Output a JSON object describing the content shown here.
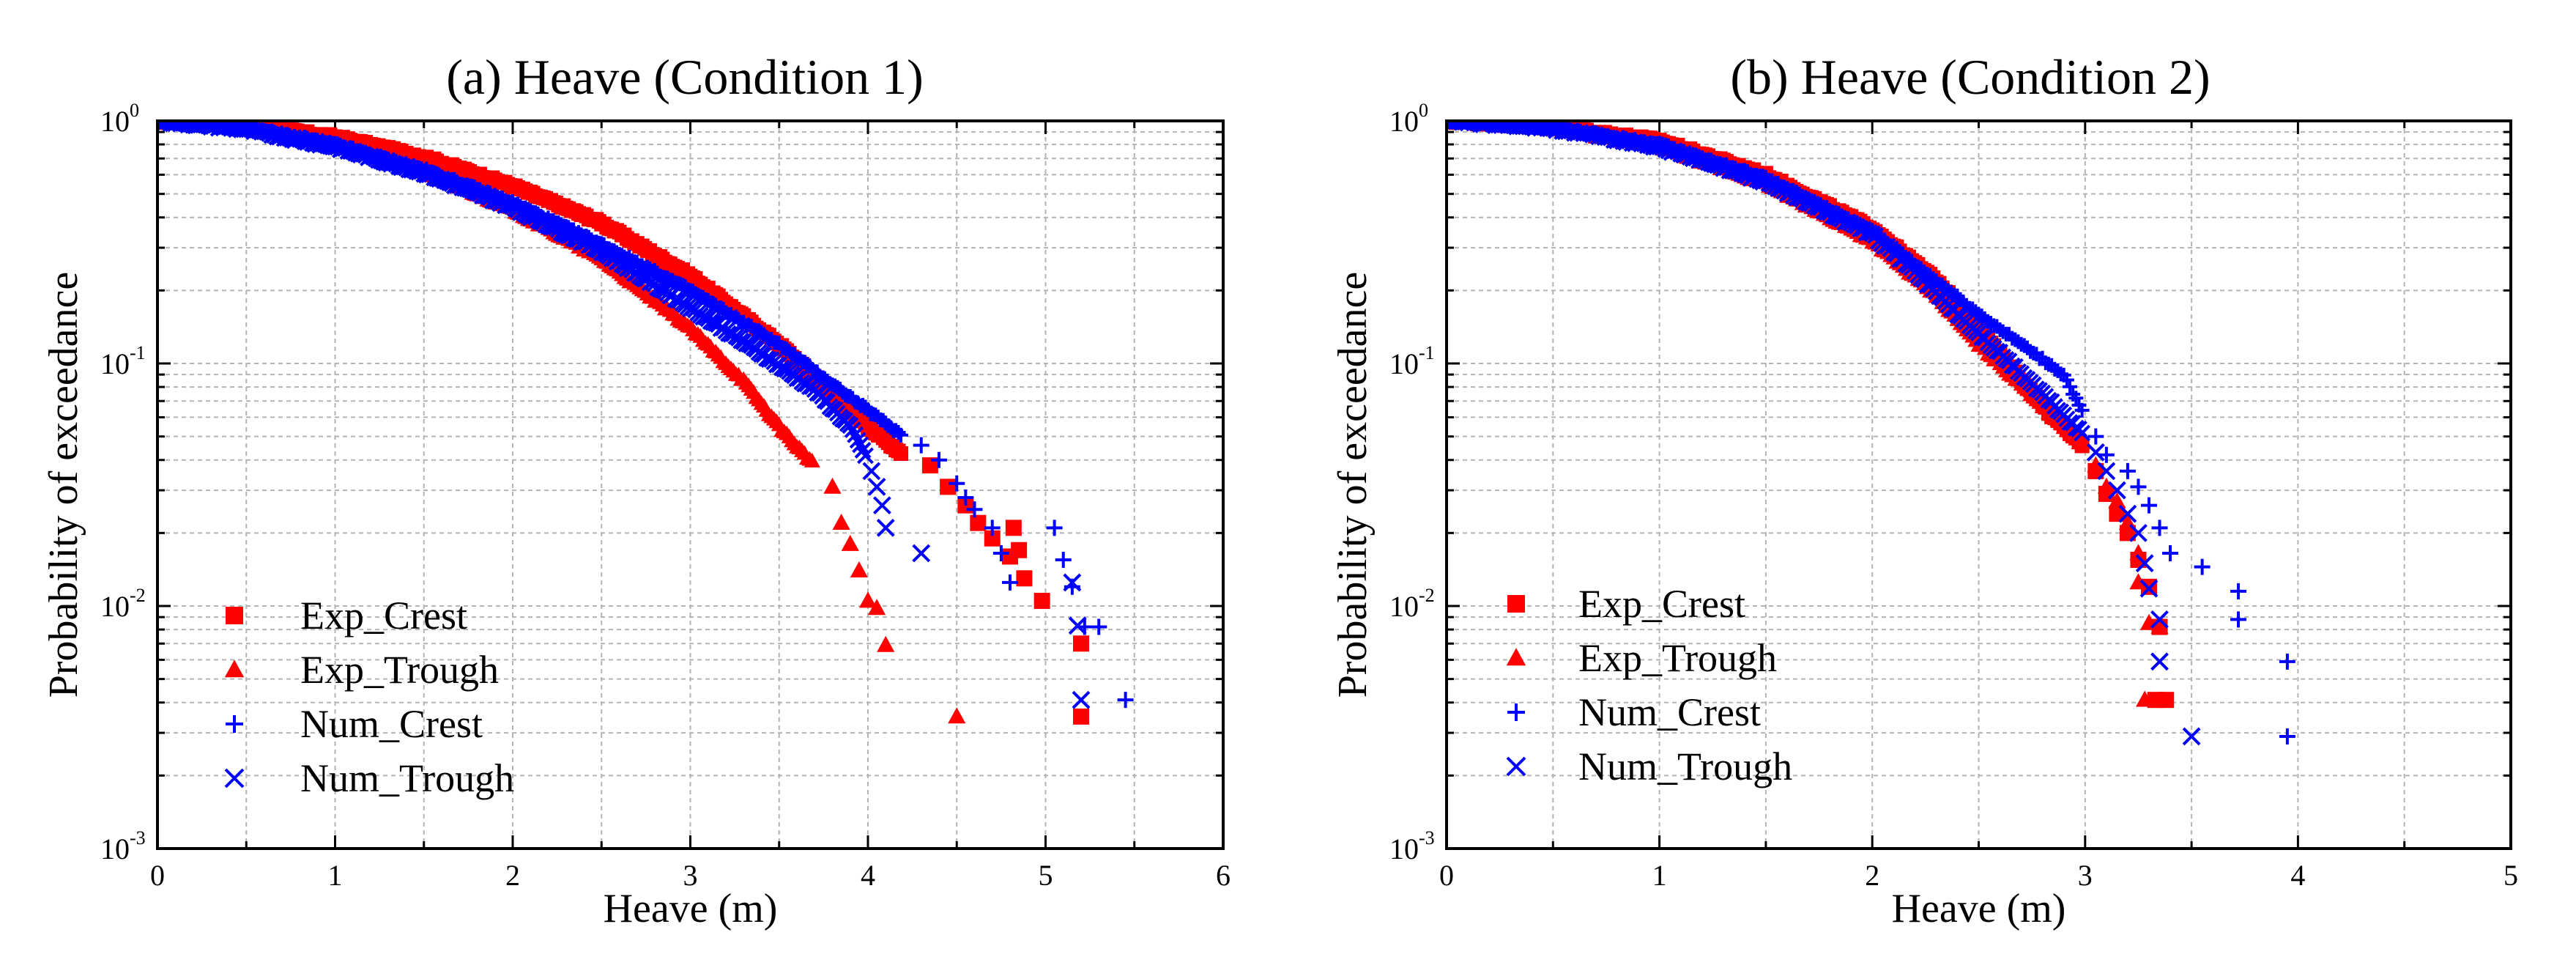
{
  "colors": {
    "exp": "#ff0000",
    "num": "#0000ff"
  },
  "chart_data": [
    {
      "type": "scatter",
      "title": "(a) Heave (Condition 1)",
      "xlabel": "Heave (m)",
      "ylabel": "Probability of exceedance",
      "xscale": "linear",
      "yscale": "log",
      "xlim": [
        0,
        6
      ],
      "ylim": [
        0.001,
        1
      ],
      "xticks": [
        0,
        1,
        2,
        3,
        4,
        5,
        6
      ],
      "xtick_labels": [
        "0",
        "1",
        "2",
        "3",
        "4",
        "5",
        "6"
      ],
      "yticks": [
        0.001,
        0.01,
        0.1,
        1
      ],
      "ytick_labels": [
        [
          "10",
          "-3"
        ],
        [
          "10",
          "-2"
        ],
        [
          "10",
          "-1"
        ],
        [
          "10",
          "0"
        ]
      ],
      "grid": true,
      "legend_position": "lower-left",
      "series": [
        {
          "name": "Exp_Crest",
          "marker": "square",
          "color": "#ff0000",
          "curve": [
            [
              0,
              1
            ],
            [
              0.5,
              0.96
            ],
            [
              1,
              0.86
            ],
            [
              1.5,
              0.71
            ],
            [
              2,
              0.54
            ],
            [
              2.5,
              0.38
            ],
            [
              3,
              0.23
            ],
            [
              3.5,
              0.12
            ],
            [
              3.8,
              0.075
            ],
            [
              4,
              0.055
            ],
            [
              4.2,
              0.042
            ]
          ],
          "points": [
            [
              4.35,
              0.038
            ],
            [
              4.45,
              0.031
            ],
            [
              4.55,
              0.026
            ],
            [
              4.62,
              0.022
            ],
            [
              4.7,
              0.019
            ],
            [
              4.8,
              0.016
            ],
            [
              4.82,
              0.021
            ],
            [
              4.85,
              0.017
            ],
            [
              4.88,
              0.013
            ],
            [
              4.98,
              0.0105
            ],
            [
              5.2,
              0.007
            ],
            [
              5.2,
              0.0035
            ]
          ]
        },
        {
          "name": "Exp_Trough",
          "marker": "triangle",
          "color": "#ff0000",
          "curve": [
            [
              0,
              1
            ],
            [
              0.5,
              0.93
            ],
            [
              1,
              0.8
            ],
            [
              1.5,
              0.62
            ],
            [
              2,
              0.43
            ],
            [
              2.5,
              0.27
            ],
            [
              3,
              0.14
            ],
            [
              3.3,
              0.085
            ],
            [
              3.5,
              0.055
            ],
            [
              3.7,
              0.038
            ]
          ],
          "points": [
            [
              3.8,
              0.031
            ],
            [
              3.85,
              0.022
            ],
            [
              3.9,
              0.018
            ],
            [
              3.95,
              0.014
            ],
            [
              4,
              0.0105
            ],
            [
              4.05,
              0.0098
            ],
            [
              4.1,
              0.0069
            ],
            [
              4.5,
              0.0035
            ]
          ]
        },
        {
          "name": "Num_Crest",
          "marker": "plus",
          "color": "#0000ff",
          "curve": [
            [
              0,
              1
            ],
            [
              0.5,
              0.94
            ],
            [
              1,
              0.8
            ],
            [
              1.5,
              0.63
            ],
            [
              2,
              0.46
            ],
            [
              2.5,
              0.31
            ],
            [
              3,
              0.2
            ],
            [
              3.5,
              0.12
            ],
            [
              3.8,
              0.082
            ],
            [
              4,
              0.064
            ],
            [
              4.2,
              0.05
            ]
          ],
          "points": [
            [
              4.3,
              0.046
            ],
            [
              4.4,
              0.04
            ],
            [
              4.5,
              0.032
            ],
            [
              4.55,
              0.028
            ],
            [
              4.6,
              0.025
            ],
            [
              4.7,
              0.021
            ],
            [
              4.75,
              0.0165
            ],
            [
              4.8,
              0.0125
            ],
            [
              5.05,
              0.021
            ],
            [
              5.1,
              0.0155
            ],
            [
              5.15,
              0.012
            ],
            [
              5.22,
              0.0082
            ],
            [
              5.3,
              0.0082
            ],
            [
              5.45,
              0.0041
            ]
          ]
        },
        {
          "name": "Num_Trough",
          "marker": "cross",
          "color": "#0000ff",
          "curve": [
            [
              0,
              1
            ],
            [
              0.5,
              0.92
            ],
            [
              1,
              0.78
            ],
            [
              1.5,
              0.61
            ],
            [
              2,
              0.44
            ],
            [
              2.5,
              0.29
            ],
            [
              3,
              0.17
            ],
            [
              3.4,
              0.11
            ],
            [
              3.7,
              0.078
            ],
            [
              3.9,
              0.055
            ],
            [
              4,
              0.04
            ]
          ],
          "points": [
            [
              4.02,
              0.036
            ],
            [
              4.05,
              0.031
            ],
            [
              4.08,
              0.026
            ],
            [
              4.1,
              0.021
            ],
            [
              4.3,
              0.0165
            ],
            [
              5.15,
              0.0125
            ],
            [
              5.18,
              0.0083
            ],
            [
              5.2,
              0.0041
            ]
          ]
        }
      ]
    },
    {
      "type": "scatter",
      "title": "(b) Heave (Condition 2)",
      "xlabel": "Heave (m)",
      "ylabel": "Probability of exceedance",
      "xscale": "linear",
      "yscale": "log",
      "xlim": [
        0,
        5
      ],
      "ylim": [
        0.001,
        1
      ],
      "xticks": [
        0,
        1,
        2,
        3,
        4,
        5
      ],
      "xtick_labels": [
        "0",
        "1",
        "2",
        "3",
        "4",
        "5"
      ],
      "yticks": [
        0.001,
        0.01,
        0.1,
        1
      ],
      "ytick_labels": [
        [
          "10",
          "-3"
        ],
        [
          "10",
          "-2"
        ],
        [
          "10",
          "-1"
        ],
        [
          "10",
          "0"
        ]
      ],
      "grid": true,
      "legend_position": "lower-left",
      "series": [
        {
          "name": "Exp_Crest",
          "marker": "square",
          "color": "#ff0000",
          "curve": [
            [
              0,
              1
            ],
            [
              0.5,
              0.95
            ],
            [
              1,
              0.83
            ],
            [
              1.5,
              0.6
            ],
            [
              2,
              0.36
            ],
            [
              2.3,
              0.22
            ],
            [
              2.5,
              0.14
            ],
            [
              2.7,
              0.085
            ],
            [
              2.85,
              0.06
            ],
            [
              3,
              0.045
            ]
          ],
          "points": [
            [
              3.05,
              0.036
            ],
            [
              3.1,
              0.029
            ],
            [
              3.15,
              0.024
            ],
            [
              3.2,
              0.02
            ],
            [
              3.25,
              0.0155
            ],
            [
              3.3,
              0.012
            ],
            [
              3.35,
              0.0082
            ],
            [
              3.33,
              0.0041
            ],
            [
              3.38,
              0.0041
            ]
          ]
        },
        {
          "name": "Exp_Trough",
          "marker": "triangle",
          "color": "#ff0000",
          "curve": [
            [
              0,
              1
            ],
            [
              0.5,
              0.93
            ],
            [
              1,
              0.78
            ],
            [
              1.5,
              0.55
            ],
            [
              2,
              0.32
            ],
            [
              2.3,
              0.19
            ],
            [
              2.5,
              0.12
            ],
            [
              2.7,
              0.082
            ],
            [
              2.9,
              0.055
            ],
            [
              3,
              0.045
            ]
          ],
          "points": [
            [
              3.05,
              0.038
            ],
            [
              3.1,
              0.031
            ],
            [
              3.15,
              0.027
            ],
            [
              3.2,
              0.022
            ],
            [
              3.25,
              0.0165
            ],
            [
              3.25,
              0.0125
            ],
            [
              3.3,
              0.0085
            ],
            [
              3.35,
              0.0082
            ],
            [
              3.28,
              0.0041
            ]
          ]
        },
        {
          "name": "Num_Crest",
          "marker": "plus",
          "color": "#0000ff",
          "curve": [
            [
              0,
              1
            ],
            [
              0.5,
              0.94
            ],
            [
              1,
              0.8
            ],
            [
              1.5,
              0.58
            ],
            [
              2,
              0.35
            ],
            [
              2.3,
              0.22
            ],
            [
              2.5,
              0.16
            ],
            [
              2.7,
              0.12
            ],
            [
              2.9,
              0.09
            ],
            [
              3,
              0.06
            ]
          ],
          "points": [
            [
              3.05,
              0.05
            ],
            [
              3.1,
              0.042
            ],
            [
              3.2,
              0.036
            ],
            [
              3.25,
              0.031
            ],
            [
              3.3,
              0.026
            ],
            [
              3.35,
              0.021
            ],
            [
              3.4,
              0.0165
            ],
            [
              3.55,
              0.0145
            ],
            [
              3.72,
              0.0115
            ],
            [
              3.72,
              0.0088
            ],
            [
              3.95,
              0.0059
            ],
            [
              3.95,
              0.0029
            ]
          ]
        },
        {
          "name": "Num_Trough",
          "marker": "cross",
          "color": "#0000ff",
          "curve": [
            [
              0,
              1
            ],
            [
              0.5,
              0.93
            ],
            [
              1,
              0.78
            ],
            [
              1.5,
              0.56
            ],
            [
              2,
              0.34
            ],
            [
              2.2,
              0.24
            ],
            [
              2.4,
              0.16
            ],
            [
              2.6,
              0.11
            ],
            [
              2.8,
              0.075
            ],
            [
              3,
              0.05
            ]
          ],
          "points": [
            [
              3.05,
              0.043
            ],
            [
              3.1,
              0.036
            ],
            [
              3.15,
              0.03
            ],
            [
              3.2,
              0.024
            ],
            [
              3.25,
              0.02
            ],
            [
              3.28,
              0.015
            ],
            [
              3.3,
              0.0118
            ],
            [
              3.35,
              0.0088
            ],
            [
              3.35,
              0.0059
            ],
            [
              3.5,
              0.0029
            ]
          ]
        }
      ]
    }
  ]
}
